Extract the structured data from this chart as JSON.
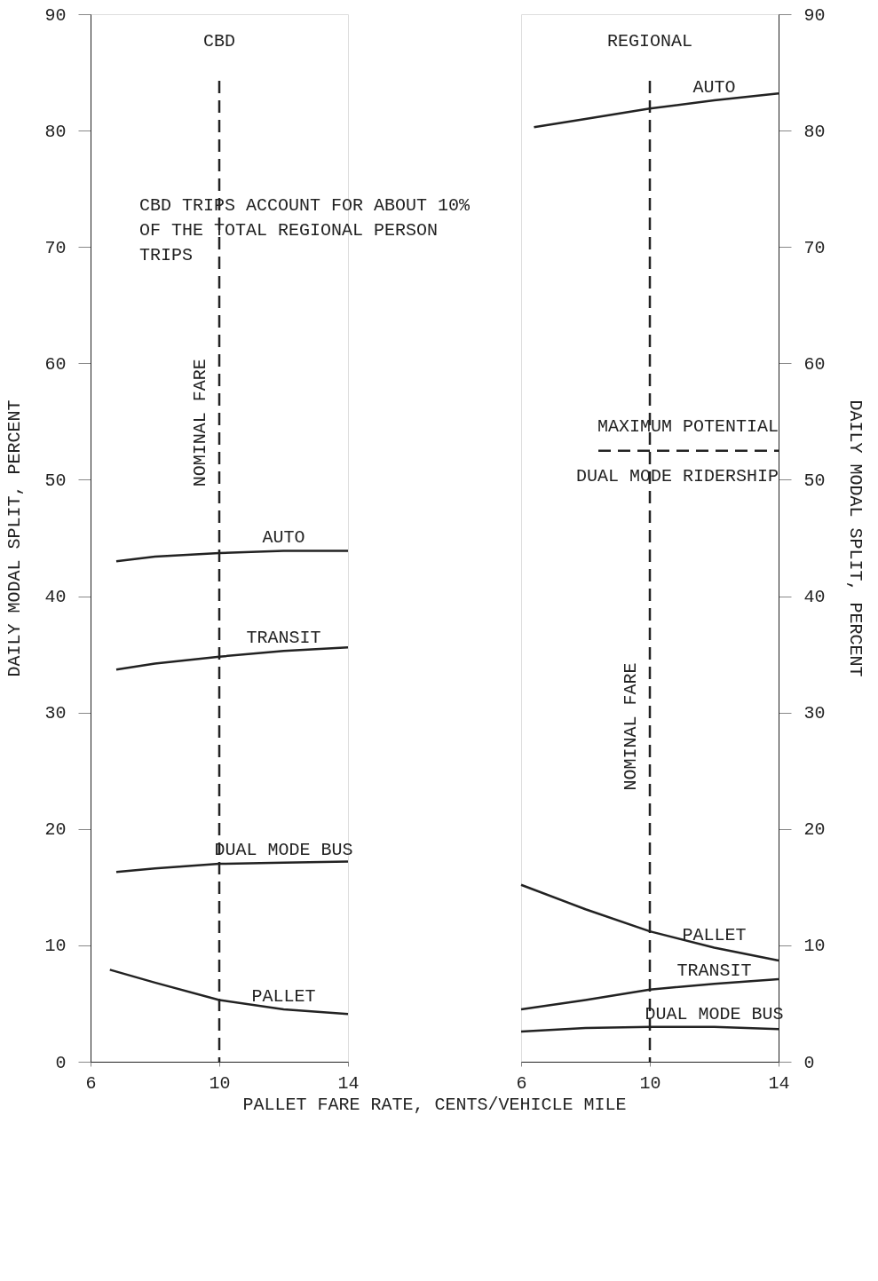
{
  "chart_data": [
    {
      "type": "line",
      "title": "CBD",
      "xlabel": "PALLET FARE RATE, CENTS/VEHICLE MILE",
      "ylabel": "DAILY MODAL SPLIT, PERCENT",
      "xlim": [
        6,
        14
      ],
      "ylim": [
        0,
        90
      ],
      "xticks": [
        6,
        10,
        14
      ],
      "yticks": [
        0,
        10,
        20,
        30,
        40,
        50,
        60,
        70,
        80,
        90
      ],
      "grid": false,
      "legend": false,
      "marker": "none",
      "line_style": "solid",
      "annotations": [
        "CBD TRIPS ACCOUNT FOR ABOUT 10%\nOF THE TOTAL REGIONAL PERSON\nTRIPS"
      ],
      "ref_lines": [
        {
          "axis": "x",
          "value": 10,
          "label": "NOMINAL FARE",
          "line_style": "dashed",
          "color": "#222222"
        }
      ],
      "series": [
        {
          "name": "AUTO",
          "color": "#222222",
          "x": [
            6.8,
            8,
            10,
            12,
            14
          ],
          "values": [
            43.0,
            43.4,
            43.7,
            43.9,
            43.9
          ]
        },
        {
          "name": "TRANSIT",
          "color": "#222222",
          "x": [
            6.8,
            8,
            10,
            12,
            14
          ],
          "values": [
            33.7,
            34.2,
            34.8,
            35.3,
            35.6
          ]
        },
        {
          "name": "DUAL MODE BUS",
          "color": "#222222",
          "x": [
            6.8,
            8,
            10,
            12,
            14
          ],
          "values": [
            16.3,
            16.6,
            17.0,
            17.1,
            17.2
          ]
        },
        {
          "name": "PALLET",
          "color": "#222222",
          "x": [
            6.6,
            8,
            10,
            12,
            14
          ],
          "values": [
            7.9,
            6.8,
            5.3,
            4.5,
            4.1
          ]
        }
      ]
    },
    {
      "type": "line",
      "title": "REGIONAL",
      "ylabel": "DAILY MODAL SPLIT, PERCENT",
      "xlim": [
        6,
        14
      ],
      "ylim": [
        0,
        90
      ],
      "xticks": [
        6,
        10,
        14
      ],
      "yticks": [
        0,
        10,
        20,
        30,
        40,
        50,
        60,
        70,
        80,
        90
      ],
      "grid": false,
      "legend": false,
      "marker": "none",
      "line_style": "solid",
      "ref_lines": [
        {
          "axis": "x",
          "value": 10,
          "label": "NOMINAL FARE",
          "line_style": "dashed",
          "color": "#222222"
        },
        {
          "axis": "y",
          "value": 52.5,
          "label": "MAXIMUM POTENTIAL\nDUAL MODE RIDERSHIP",
          "line_style": "dashed",
          "color": "#222222"
        }
      ],
      "series": [
        {
          "name": "AUTO",
          "color": "#222222",
          "x": [
            6.4,
            8,
            10,
            12,
            14
          ],
          "values": [
            80.3,
            81.0,
            81.9,
            82.6,
            83.2
          ]
        },
        {
          "name": "PALLET",
          "color": "#222222",
          "x": [
            6,
            8,
            10,
            12,
            14
          ],
          "values": [
            15.2,
            13.1,
            11.2,
            9.8,
            8.7
          ]
        },
        {
          "name": "TRANSIT",
          "color": "#222222",
          "x": [
            6,
            8,
            10,
            12,
            14
          ],
          "values": [
            4.5,
            5.3,
            6.2,
            6.7,
            7.1
          ]
        },
        {
          "name": "DUAL MODE BUS",
          "color": "#222222",
          "x": [
            6,
            8,
            10,
            12,
            14
          ],
          "values": [
            2.6,
            2.9,
            3.0,
            3.0,
            2.8
          ]
        }
      ]
    }
  ]
}
